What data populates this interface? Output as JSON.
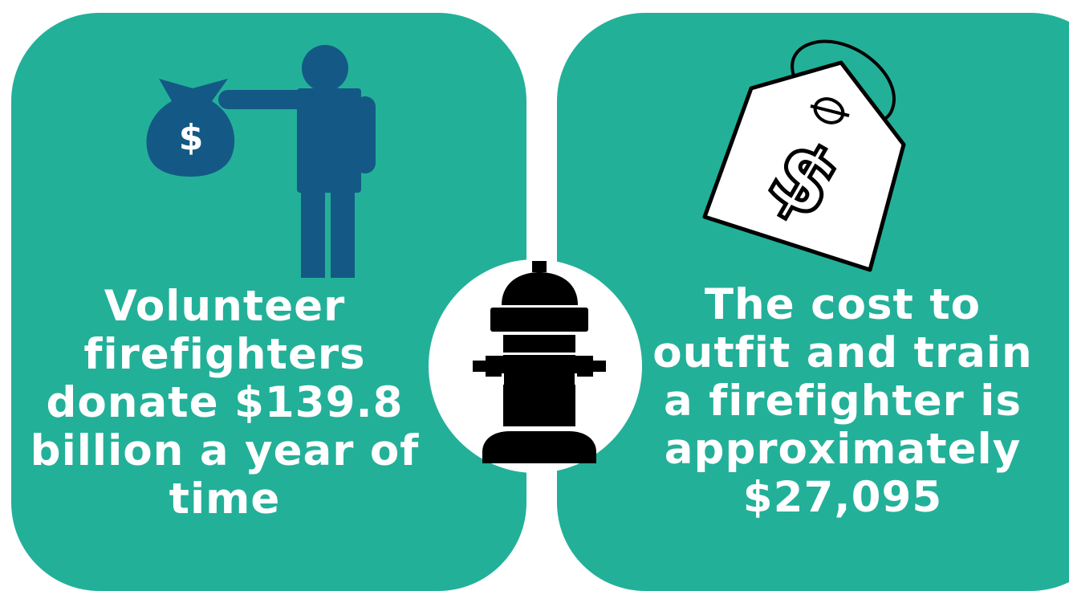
{
  "facts": {
    "left": "Volunteer firefighters donate $139.8 billion a year of time",
    "right": "The cost to outfit and train a firefighter is approximately $27,095"
  },
  "icons": {
    "left": "person-giving-money-bag-icon",
    "center": "fire-hydrant-icon",
    "right": "price-tag-icon"
  },
  "glyphs": {
    "money_bag_symbol": "$",
    "price_tag_symbol": "$"
  },
  "colors": {
    "panel": "#23b099",
    "figure": "#145985",
    "text": "#ffffff",
    "hydrant": "#000000"
  }
}
